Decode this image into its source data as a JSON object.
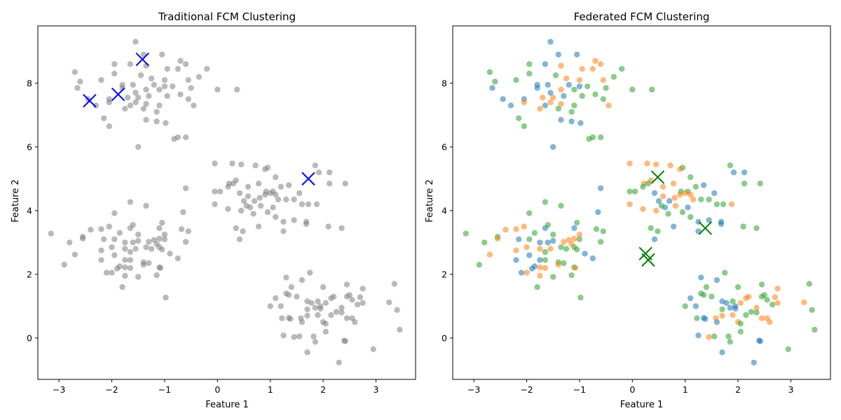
{
  "colors": {
    "gray": "#808080",
    "blue": "#1f77b4",
    "orange": "#ff7f0e",
    "green": "#2ca02c",
    "centroid_left": "#0000ff",
    "centroid_right": "#008000"
  },
  "chart_data": [
    {
      "type": "scatter",
      "title": "Traditional FCM Clustering",
      "xlabel": "Feature 1",
      "ylabel": "Feature 2",
      "xlim": [
        -3.4,
        3.75
      ],
      "ylim": [
        -1.3,
        9.8
      ],
      "xticks": [
        -3,
        -2,
        -1,
        0,
        1,
        2,
        3
      ],
      "yticks": [
        0,
        2,
        4,
        6,
        8
      ],
      "grid": false,
      "point_color": "gray",
      "centroids": {
        "color": "centroid_left",
        "marker": "x",
        "points": [
          [
            -1.42,
            8.75
          ],
          [
            -2.42,
            7.45
          ],
          [
            -1.88,
            7.65
          ],
          [
            1.72,
            5.0
          ]
        ]
      }
    },
    {
      "type": "scatter",
      "title": "Federated FCM Clustering",
      "xlabel": "Feature 1",
      "ylabel": "Feature 2",
      "xlim": [
        -3.4,
        3.75
      ],
      "ylim": [
        -1.3,
        9.8
      ],
      "xticks": [
        -3,
        -2,
        -1,
        0,
        1,
        2,
        3
      ],
      "yticks": [
        0,
        2,
        4,
        6,
        8
      ],
      "grid": false,
      "point_colors": [
        "blue",
        "orange",
        "green"
      ],
      "centroids": {
        "color": "centroid_right",
        "marker": "x",
        "points": [
          [
            0.48,
            5.05
          ],
          [
            1.38,
            3.45
          ],
          [
            0.25,
            2.65
          ],
          [
            0.3,
            2.45
          ]
        ]
      }
    }
  ],
  "points": [
    [
      -1.55,
      9.3
    ],
    [
      -1.4,
      8.9
    ],
    [
      -1.05,
      8.9
    ],
    [
      -1.65,
      8.6
    ],
    [
      -1.35,
      8.55
    ],
    [
      -0.95,
      8.45
    ],
    [
      -0.7,
      8.7
    ],
    [
      -0.6,
      8.6
    ],
    [
      -0.2,
      8.45
    ],
    [
      -2.7,
      8.35
    ],
    [
      -1.95,
      8.3
    ],
    [
      -1.45,
      8.25
    ],
    [
      -1.25,
      8.15
    ],
    [
      -1.0,
      8.1
    ],
    [
      -0.75,
      8.45
    ],
    [
      -0.55,
      8.1
    ],
    [
      -0.35,
      8.2
    ],
    [
      -2.6,
      8.05
    ],
    [
      -1.95,
      8.6
    ],
    [
      -2.2,
      8.1
    ],
    [
      -1.8,
      7.95
    ],
    [
      -1.6,
      7.95
    ],
    [
      -1.2,
      7.95
    ],
    [
      -1.0,
      7.9
    ],
    [
      -0.85,
      7.9
    ],
    [
      -0.5,
      7.85
    ],
    [
      0.0,
      7.8
    ],
    [
      0.37,
      7.8
    ],
    [
      -2.65,
      7.85
    ],
    [
      -2.45,
      7.5
    ],
    [
      -2.3,
      7.3
    ],
    [
      -2.05,
      7.5
    ],
    [
      -1.7,
      7.55
    ],
    [
      -1.5,
      7.55
    ],
    [
      -1.35,
      7.8
    ],
    [
      -1.35,
      7.35
    ],
    [
      -1.1,
      7.8
    ],
    [
      -0.95,
      7.6
    ],
    [
      -0.7,
      7.65
    ],
    [
      -0.55,
      7.5
    ],
    [
      -0.45,
      7.3
    ],
    [
      -2.05,
      7.4
    ],
    [
      -1.75,
      7.2
    ],
    [
      -1.55,
      7.4
    ],
    [
      -1.4,
      7.2
    ],
    [
      -1.1,
      7.3
    ],
    [
      -1.15,
      7.1
    ],
    [
      -2.15,
      6.9
    ],
    [
      -1.65,
      7.3
    ],
    [
      -1.35,
      6.85
    ],
    [
      -1.15,
      6.8
    ],
    [
      -0.98,
      6.75
    ],
    [
      -2.05,
      6.65
    ],
    [
      -0.75,
      6.3
    ],
    [
      -0.6,
      6.3
    ],
    [
      -0.82,
      6.25
    ],
    [
      -1.5,
      6.0
    ],
    [
      -1.8,
      7.85
    ],
    [
      -1.55,
      7.7
    ],
    [
      -1.3,
      7.6
    ],
    [
      -0.05,
      5.48
    ],
    [
      0.28,
      5.48
    ],
    [
      0.45,
      5.45
    ],
    [
      0.72,
      5.42
    ],
    [
      0.95,
      5.35
    ],
    [
      1.85,
      5.42
    ],
    [
      -0.05,
      4.6
    ],
    [
      0.05,
      4.6
    ],
    [
      0.22,
      4.85
    ],
    [
      0.35,
      4.95
    ],
    [
      0.58,
      4.75
    ],
    [
      0.78,
      4.85
    ],
    [
      0.92,
      4.6
    ],
    [
      1.05,
      4.6
    ],
    [
      1.1,
      5.05
    ],
    [
      1.2,
      4.75
    ],
    [
      1.35,
      4.8
    ],
    [
      1.55,
      4.55
    ],
    [
      1.92,
      5.2
    ],
    [
      2.12,
      5.2
    ],
    [
      2.12,
      4.85
    ],
    [
      2.42,
      4.85
    ],
    [
      0.2,
      4.75
    ],
    [
      0.3,
      4.85
    ],
    [
      0.42,
      4.55
    ],
    [
      0.5,
      4.3
    ],
    [
      0.62,
      4.1
    ],
    [
      0.7,
      4.3
    ],
    [
      0.82,
      4.15
    ],
    [
      0.9,
      4.5
    ],
    [
      1.1,
      4.5
    ],
    [
      1.15,
      4.35
    ],
    [
      1.3,
      4.35
    ],
    [
      1.45,
      4.35
    ],
    [
      1.6,
      4.2
    ],
    [
      1.72,
      4.2
    ],
    [
      1.88,
      4.2
    ],
    [
      -0.05,
      4.2
    ],
    [
      0.2,
      4.05
    ],
    [
      0.45,
      4.0
    ],
    [
      0.55,
      4.15
    ],
    [
      0.68,
      3.9
    ],
    [
      0.95,
      3.95
    ],
    [
      1.1,
      3.8
    ],
    [
      1.25,
      3.65
    ],
    [
      1.45,
      3.7
    ],
    [
      1.68,
      3.65
    ],
    [
      1.68,
      3.58
    ],
    [
      2.1,
      3.5
    ],
    [
      2.35,
      3.45
    ],
    [
      0.35,
      3.45
    ],
    [
      0.48,
      3.35
    ],
    [
      0.78,
      3.5
    ],
    [
      1.25,
      3.35
    ],
    [
      0.42,
      3.1
    ],
    [
      1.05,
      4.1
    ],
    [
      0.8,
      4.4
    ],
    [
      1.0,
      4.55
    ],
    [
      0.58,
      4.45
    ],
    [
      0.9,
      5.3
    ],
    [
      -3.15,
      3.28
    ],
    [
      -2.8,
      3.0
    ],
    [
      -2.9,
      2.3
    ],
    [
      -2.55,
      3.18
    ],
    [
      -2.55,
      3.12
    ],
    [
      -2.4,
      3.4
    ],
    [
      -2.2,
      3.42
    ],
    [
      -2.05,
      3.5
    ],
    [
      -1.95,
      3.92
    ],
    [
      -1.65,
      4.27
    ],
    [
      -1.35,
      4.15
    ],
    [
      -1.05,
      3.62
    ],
    [
      -0.65,
      3.95
    ],
    [
      -0.6,
      4.7
    ],
    [
      -1.1,
      3.45
    ],
    [
      -1.65,
      3.45
    ],
    [
      -1.6,
      3.55
    ],
    [
      -1.85,
      3.3
    ],
    [
      -1.5,
      3.25
    ],
    [
      -1.95,
      3.1
    ],
    [
      -2.15,
      3.1
    ],
    [
      -1.75,
      3.0
    ],
    [
      -1.6,
      3.0
    ],
    [
      -1.5,
      3.05
    ],
    [
      -1.3,
      3.02
    ],
    [
      -1.2,
      3.08
    ],
    [
      -1.1,
      3.12
    ],
    [
      -1.0,
      3.25
    ],
    [
      -1.0,
      3.1
    ],
    [
      -0.68,
      3.42
    ],
    [
      -0.55,
      3.35
    ],
    [
      -0.6,
      3.02
    ],
    [
      -2.2,
      2.75
    ],
    [
      -2.0,
      2.85
    ],
    [
      -1.75,
      2.8
    ],
    [
      -1.55,
      2.8
    ],
    [
      -1.65,
      2.7
    ],
    [
      -1.25,
      2.8
    ],
    [
      -1.1,
      2.85
    ],
    [
      -1.05,
      2.78
    ],
    [
      -0.9,
      2.65
    ],
    [
      -1.75,
      2.45
    ],
    [
      -2.2,
      2.45
    ],
    [
      -1.95,
      2.6
    ],
    [
      -1.65,
      2.45
    ],
    [
      -1.4,
      2.38
    ],
    [
      -1.3,
      2.35
    ],
    [
      -1.1,
      2.22
    ],
    [
      -0.75,
      2.5
    ],
    [
      -2.1,
      2.05
    ],
    [
      -1.9,
      2.18
    ],
    [
      -1.85,
      2.25
    ],
    [
      -1.75,
      2.22
    ],
    [
      -1.65,
      2.2
    ],
    [
      -1.75,
      1.95
    ],
    [
      -2.0,
      2.05
    ],
    [
      -1.15,
      1.97
    ],
    [
      -1.5,
      1.92
    ],
    [
      -1.8,
      1.6
    ],
    [
      -0.98,
      1.27
    ],
    [
      -2.7,
      2.62
    ],
    [
      -1.4,
      2.3
    ],
    [
      -1.08,
      2.2
    ],
    [
      -1.15,
      2.95
    ],
    [
      -1.35,
      2.85
    ],
    [
      1.9,
      1.15
    ],
    [
      2.0,
      1.6
    ],
    [
      1.75,
      2.05
    ],
    [
      1.6,
      1.82
    ],
    [
      1.3,
      1.9
    ],
    [
      1.1,
      1.25
    ],
    [
      1.2,
      1.0
    ],
    [
      1.3,
      1.4
    ],
    [
      1.4,
      1.6
    ],
    [
      1.35,
      1.35
    ],
    [
      1.5,
      1.3
    ],
    [
      1.7,
      1.15
    ],
    [
      1.78,
      1.1
    ],
    [
      1.85,
      0.95
    ],
    [
      1.95,
      0.92
    ],
    [
      2.05,
      1.1
    ],
    [
      2.15,
      1.25
    ],
    [
      2.2,
      1.3
    ],
    [
      2.35,
      0.95
    ],
    [
      2.45,
      1.3
    ],
    [
      2.45,
      1.68
    ],
    [
      2.5,
      1.35
    ],
    [
      2.65,
      1.05
    ],
    [
      2.7,
      1.28
    ],
    [
      2.75,
      1.55
    ],
    [
      2.75,
      1.1
    ],
    [
      3.25,
      1.12
    ],
    [
      3.35,
      1.7
    ],
    [
      3.4,
      0.88
    ],
    [
      3.45,
      0.26
    ],
    [
      2.95,
      -0.35
    ],
    [
      2.4,
      -0.08
    ],
    [
      2.42,
      -0.1
    ],
    [
      2.3,
      -0.77
    ],
    [
      1.7,
      -0.45
    ],
    [
      1.85,
      -0.12
    ],
    [
      1.82,
      0.05
    ],
    [
      2.05,
      0.2
    ],
    [
      1.55,
      0.05
    ],
    [
      1.6,
      0.5
    ],
    [
      1.25,
      0.08
    ],
    [
      1.38,
      0.6
    ],
    [
      1.35,
      0.63
    ],
    [
      1.58,
      0.62
    ],
    [
      1.7,
      0.7
    ],
    [
      1.9,
      0.72
    ],
    [
      2.0,
      0.5
    ],
    [
      2.05,
      0.45
    ],
    [
      2.15,
      0.72
    ],
    [
      2.25,
      0.82
    ],
    [
      2.35,
      0.8
    ],
    [
      2.45,
      0.62
    ],
    [
      2.55,
      0.62
    ],
    [
      2.6,
      0.5
    ],
    [
      1.45,
      0.03
    ],
    [
      1.0,
      1.0
    ],
    [
      1.22,
      0.62
    ],
    [
      1.7,
      0.9
    ],
    [
      2.55,
      1.2
    ],
    [
      1.95,
      1.0
    ]
  ]
}
